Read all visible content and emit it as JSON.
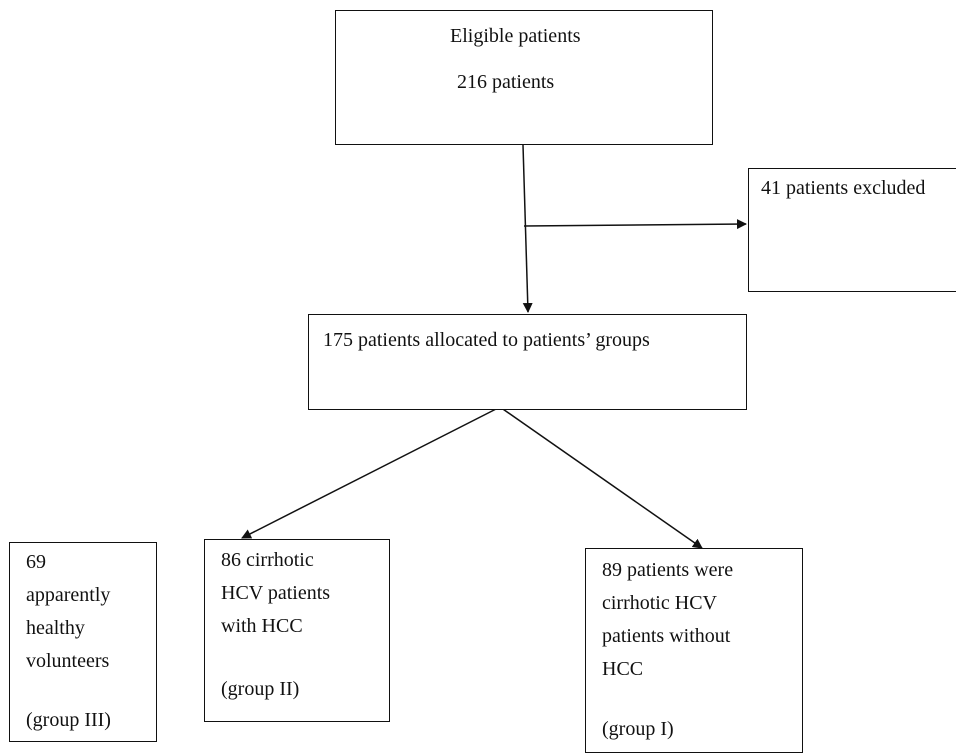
{
  "boxes": {
    "eligible": {
      "title": "Eligible patients",
      "count": "216 patients"
    },
    "excluded": {
      "text": "41 patients excluded"
    },
    "allocated": {
      "text": "175 patients allocated to patients’ groups"
    },
    "group3": {
      "lines": [
        "69",
        "apparently",
        "healthy",
        "volunteers"
      ],
      "group": "(group III)"
    },
    "group2": {
      "lines": [
        "86 cirrhotic",
        "HCV patients",
        "with HCC"
      ],
      "group": "(group II)"
    },
    "group1": {
      "lines": [
        "89 patients were",
        "cirrhotic HCV",
        "patients without",
        "HCC"
      ],
      "group": "(group I)"
    }
  }
}
